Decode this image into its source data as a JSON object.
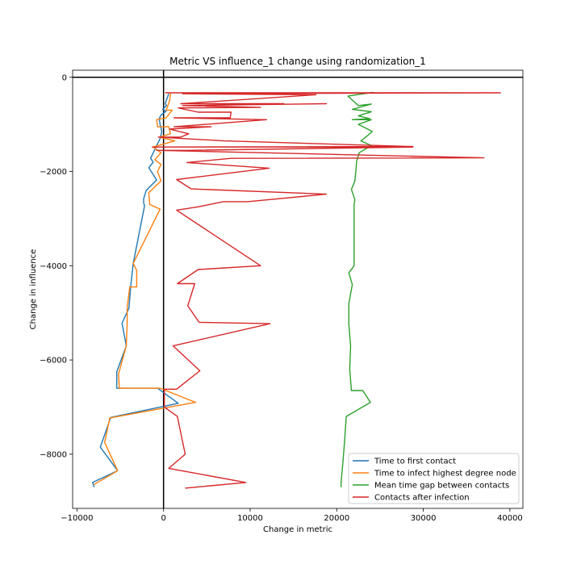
{
  "chart_data": {
    "type": "line",
    "title": "Metric VS influence_1 change using randomization_1",
    "xlabel": "Change in metric",
    "ylabel": "Change in influence",
    "xlim": [
      -10500,
      41500
    ],
    "ylim": [
      -9150,
      150
    ],
    "xticks": [
      -10000,
      0,
      10000,
      20000,
      30000,
      40000
    ],
    "xtick_labels": [
      "−10000",
      "0",
      "10000",
      "20000",
      "30000",
      "40000"
    ],
    "yticks": [
      0,
      -2000,
      -4000,
      -6000,
      -8000
    ],
    "ytick_labels": [
      "0",
      "−2000",
      "−4000",
      "−6000",
      "−8000"
    ],
    "reference_lines": {
      "x": 0,
      "y": 0
    },
    "legend_position": "lower right",
    "grid": false,
    "series": [
      {
        "name": "Time to first contact",
        "color": "#1f77b4",
        "points": [
          [
            600,
            -350
          ],
          [
            300,
            -500
          ],
          [
            200,
            -560
          ],
          [
            350,
            -600
          ],
          [
            -100,
            -680
          ],
          [
            300,
            -720
          ],
          [
            -300,
            -800
          ],
          [
            -500,
            -880
          ],
          [
            -400,
            -1000
          ],
          [
            -200,
            -1150
          ],
          [
            -400,
            -1300
          ],
          [
            -1500,
            -1720
          ],
          [
            -1200,
            -1800
          ],
          [
            -1700,
            -1920
          ],
          [
            -800,
            -2180
          ],
          [
            -2000,
            -2400
          ],
          [
            -2300,
            -2580
          ],
          [
            -2300,
            -2660
          ],
          [
            -2200,
            -2730
          ],
          [
            -3500,
            -3950
          ],
          [
            -3800,
            -4450
          ],
          [
            -4000,
            -4900
          ],
          [
            -4800,
            -5220
          ],
          [
            -4300,
            -5700
          ],
          [
            -5400,
            -6250
          ],
          [
            -5400,
            -6600
          ],
          [
            -700,
            -6600
          ],
          [
            1700,
            -6920
          ],
          [
            -6100,
            -7220
          ],
          [
            -7300,
            -7850
          ],
          [
            -5300,
            -8350
          ],
          [
            -8200,
            -8600
          ],
          [
            -8000,
            -8700
          ]
        ]
      },
      {
        "name": "Time to infect highest degree node",
        "color": "#ff7f0e",
        "points": [
          [
            800,
            -340
          ],
          [
            700,
            -500
          ],
          [
            300,
            -700
          ],
          [
            1000,
            -700
          ],
          [
            300,
            -860
          ],
          [
            -800,
            -900
          ],
          [
            -700,
            -1050
          ],
          [
            600,
            -1050
          ],
          [
            800,
            -1200
          ],
          [
            -500,
            -1270
          ],
          [
            1300,
            -1350
          ],
          [
            -1200,
            -1480
          ],
          [
            -300,
            -1600
          ],
          [
            -1000,
            -1750
          ],
          [
            -300,
            -1850
          ],
          [
            -700,
            -2000
          ],
          [
            -300,
            -2200
          ],
          [
            -1700,
            -2450
          ],
          [
            -1600,
            -2700
          ],
          [
            -400,
            -2800
          ],
          [
            -3500,
            -3950
          ],
          [
            -3100,
            -4100
          ],
          [
            -3100,
            -4450
          ],
          [
            -3900,
            -4450
          ],
          [
            -4200,
            -4900
          ],
          [
            -4200,
            -5220
          ],
          [
            -4300,
            -5700
          ],
          [
            -5200,
            -6300
          ],
          [
            -5100,
            -6600
          ],
          [
            -400,
            -6600
          ],
          [
            3700,
            -6900
          ],
          [
            -6200,
            -7230
          ],
          [
            -6800,
            -7750
          ],
          [
            -5300,
            -8350
          ],
          [
            -8100,
            -8650
          ]
        ]
      },
      {
        "name": "Mean time gap between contacts",
        "color": "#2ca02c",
        "points": [
          [
            24200,
            -320
          ],
          [
            21300,
            -400
          ],
          [
            22500,
            -600
          ],
          [
            24000,
            -570
          ],
          [
            21800,
            -680
          ],
          [
            24000,
            -730
          ],
          [
            22500,
            -820
          ],
          [
            23800,
            -880
          ],
          [
            21800,
            -900
          ],
          [
            24000,
            -900
          ],
          [
            22500,
            -1000
          ],
          [
            24100,
            -1150
          ],
          [
            23500,
            -1250
          ],
          [
            22800,
            -1350
          ],
          [
            24000,
            -1450
          ],
          [
            22600,
            -1600
          ],
          [
            22300,
            -1780
          ],
          [
            22200,
            -2000
          ],
          [
            22100,
            -2200
          ],
          [
            21700,
            -2380
          ],
          [
            22100,
            -2600
          ],
          [
            22000,
            -2700
          ],
          [
            22000,
            -3500
          ],
          [
            22000,
            -4000
          ],
          [
            21400,
            -4150
          ],
          [
            21800,
            -4400
          ],
          [
            21400,
            -4800
          ],
          [
            21400,
            -5250
          ],
          [
            21600,
            -5700
          ],
          [
            21500,
            -6200
          ],
          [
            21700,
            -6650
          ],
          [
            23000,
            -6650
          ],
          [
            23900,
            -6900
          ],
          [
            21100,
            -7200
          ],
          [
            20900,
            -7750
          ],
          [
            20700,
            -8200
          ],
          [
            20500,
            -8600
          ],
          [
            20500,
            -8700
          ]
        ]
      },
      {
        "name": "Contacts after infection",
        "color": "#d62728",
        "points": [
          [
            200,
            -330
          ],
          [
            38900,
            -330
          ],
          [
            2200,
            -350
          ],
          [
            17600,
            -370
          ],
          [
            2000,
            -560
          ],
          [
            13900,
            -560
          ],
          [
            2200,
            -600
          ],
          [
            18800,
            -560
          ],
          [
            2300,
            -600
          ],
          [
            11200,
            -640
          ],
          [
            1700,
            -650
          ],
          [
            4000,
            -740
          ],
          [
            7800,
            -740
          ],
          [
            7700,
            -860
          ],
          [
            1200,
            -860
          ],
          [
            11900,
            -900
          ],
          [
            1200,
            -1050
          ],
          [
            5500,
            -1050
          ],
          [
            700,
            -1100
          ],
          [
            2900,
            -1200
          ],
          [
            2000,
            -1270
          ],
          [
            -600,
            -1270
          ],
          [
            7000,
            -1350
          ],
          [
            28800,
            -1470
          ],
          [
            -1300,
            -1480
          ],
          [
            28800,
            -1480
          ],
          [
            2900,
            -1550
          ],
          [
            -800,
            -1550
          ],
          [
            37000,
            -1710
          ],
          [
            7800,
            -1720
          ],
          [
            2700,
            -1810
          ],
          [
            12200,
            -1930
          ],
          [
            1500,
            -2170
          ],
          [
            3200,
            -2370
          ],
          [
            18800,
            -2480
          ],
          [
            9700,
            -2640
          ],
          [
            6900,
            -2640
          ],
          [
            4000,
            -2750
          ],
          [
            1500,
            -2820
          ],
          [
            11200,
            -4000
          ],
          [
            4000,
            -4080
          ],
          [
            1600,
            -4380
          ],
          [
            3600,
            -4380
          ],
          [
            2800,
            -4850
          ],
          [
            4100,
            -5200
          ],
          [
            12300,
            -5230
          ],
          [
            1100,
            -5700
          ],
          [
            4200,
            -6230
          ],
          [
            1500,
            -6620
          ],
          [
            100,
            -6620
          ],
          [
            100,
            -7000
          ],
          [
            1600,
            -7200
          ],
          [
            2500,
            -8000
          ],
          [
            600,
            -8300
          ],
          [
            9500,
            -8600
          ],
          [
            2500,
            -8720
          ]
        ]
      }
    ]
  }
}
